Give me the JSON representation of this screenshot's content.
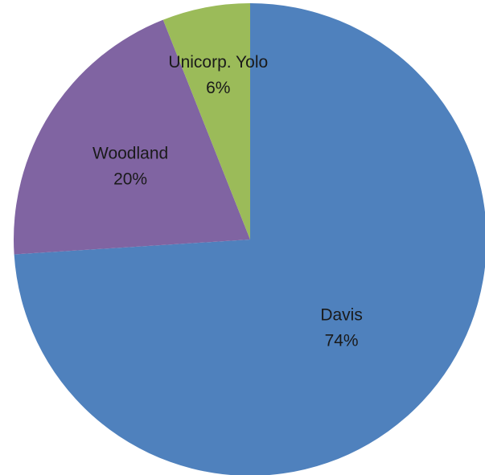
{
  "chart_data": {
    "type": "pie",
    "title": "",
    "categories": [
      "Davis",
      "Woodland",
      "Unicorp. Yolo"
    ],
    "values": [
      74,
      20,
      6
    ],
    "data_labels": [
      "74%",
      "20%",
      "6%"
    ],
    "colors": [
      "#4f81bd",
      "#8064a2",
      "#9bbb59"
    ],
    "start_angle_deg": 0,
    "direction": "clockwise",
    "legend": "none"
  }
}
